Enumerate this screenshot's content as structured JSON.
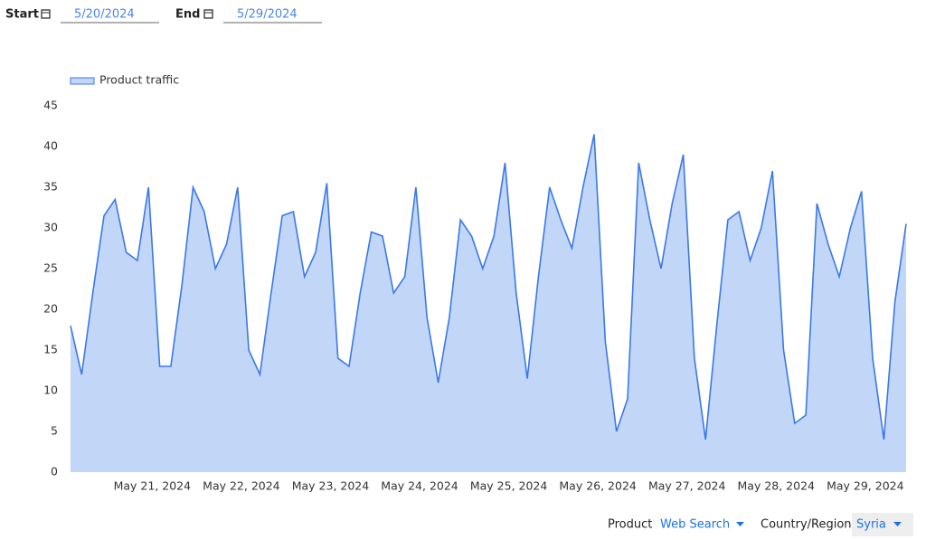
{
  "controls": {
    "start_label": "Start",
    "start_value": "5/20/2024",
    "end_label": "End",
    "end_value": "5/29/2024",
    "product_label": "Product",
    "product_value": "Web Search",
    "region_label": "Country/Region",
    "region_value": "Syria"
  },
  "chart_data": {
    "type": "area",
    "x": [
      0,
      3,
      6,
      9,
      12,
      15,
      18,
      21,
      24,
      27,
      30,
      33,
      36,
      39,
      42,
      45,
      48,
      51,
      54,
      57,
      60,
      63,
      66,
      69,
      72,
      75,
      78,
      81,
      84,
      87,
      90,
      93,
      96,
      99,
      102,
      105,
      108,
      111,
      114,
      117,
      120,
      123,
      126,
      129,
      132,
      135,
      138,
      141,
      144,
      147,
      150,
      153,
      156,
      159,
      162,
      165,
      168,
      171,
      174,
      177,
      180,
      183,
      186,
      189,
      192,
      195,
      198,
      201,
      204,
      207,
      210,
      213,
      216,
      219,
      222,
      225
    ],
    "series": [
      {
        "name": "Product traffic",
        "color": "#3b78e7",
        "fill": "#c2d7f8",
        "values": [
          18,
          12,
          22,
          31.5,
          33.5,
          27,
          26,
          35,
          13,
          13,
          23,
          35,
          32,
          25,
          28,
          35,
          15,
          12,
          22,
          31.5,
          32,
          24,
          27,
          35.5,
          14,
          13,
          22,
          29.5,
          29,
          22,
          24,
          35,
          19,
          11,
          19,
          31,
          29,
          25,
          29,
          38,
          22,
          11.5,
          24,
          35,
          31,
          27.5,
          35,
          41.5,
          16,
          5,
          9,
          38,
          31,
          25,
          33,
          39,
          14,
          4,
          18,
          31,
          32,
          26,
          30,
          37,
          15,
          6,
          7,
          33,
          28,
          24,
          30,
          34.5,
          14,
          4,
          21,
          30.5
        ]
      }
    ],
    "xlim": [
      0,
      225
    ],
    "xticks": [
      {
        "value": 22,
        "label": "May 21, 2024"
      },
      {
        "value": 46,
        "label": "May 22, 2024"
      },
      {
        "value": 70,
        "label": "May 23, 2024"
      },
      {
        "value": 94,
        "label": "May 24, 2024"
      },
      {
        "value": 118,
        "label": "May 25, 2024"
      },
      {
        "value": 142,
        "label": "May 26, 2024"
      },
      {
        "value": 166,
        "label": "May 27, 2024"
      },
      {
        "value": 190,
        "label": "May 28, 2024"
      },
      {
        "value": 214,
        "label": "May 29, 2024"
      }
    ],
    "ylim": [
      0,
      45
    ],
    "yticks": [
      0,
      5,
      10,
      15,
      20,
      25,
      30,
      35,
      40,
      45
    ],
    "legend": "top-left"
  }
}
